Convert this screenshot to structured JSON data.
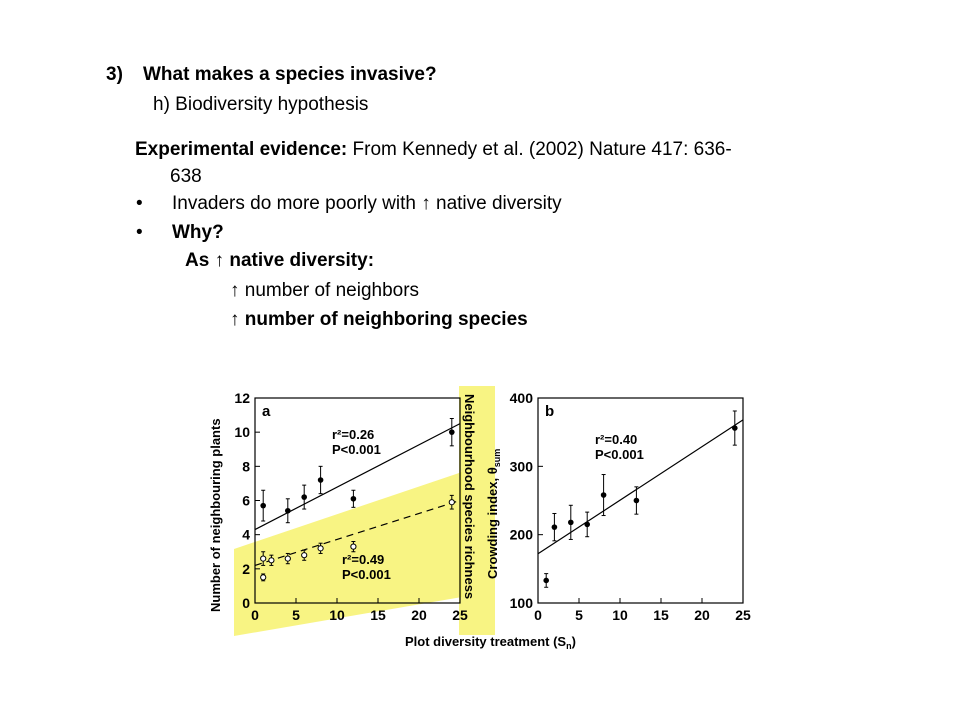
{
  "heading": {
    "number": "3)",
    "title": "What makes a species invasive?"
  },
  "subheading": "h) Biodiversity hypothesis",
  "evidence": {
    "label": "Experimental evidence:",
    "text": " From Kennedy et al. (2002) Nature 417: 636-",
    "cont": "638"
  },
  "bullets": [
    {
      "marker": "•",
      "text": "Invaders do more poorly with ↑ native diversity"
    },
    {
      "marker": "•",
      "text": "Why?"
    }
  ],
  "why": {
    "line1": "As ↑ native diversity:",
    "line2": "↑ number of neighbors",
    "line3": "↑ number of neighboring species"
  },
  "figure": {
    "shared_xlabel": "Plot diversity treatment (S",
    "shared_xlabel_sub": "n",
    "shared_xlabel_end": ")",
    "highlight_color": "#f6f05a",
    "panel_a": {
      "label": "a",
      "ylabel": "Number of neighbouring plants",
      "ylabel_right": "Neighbourhood species richness",
      "stats_top": {
        "r2": "r²=0.26",
        "p": "P<0.001"
      },
      "stats_bottom": {
        "r2": "r²=0.49",
        "p": "P<0.001"
      }
    },
    "panel_b": {
      "label": "b",
      "ylabel": "Crowding index, θ",
      "ylabel_sub": "sum",
      "stats": {
        "r2": "r²=0.40",
        "p": "P<0.001"
      }
    }
  },
  "chart_data": [
    {
      "type": "scatter",
      "panel": "a",
      "xlabel": "Plot diversity treatment (Sn)",
      "ylabel": "Number of neighbouring plants",
      "xlim": [
        0,
        25
      ],
      "ylim": [
        0,
        12
      ],
      "x_ticks": [
        0,
        5,
        10,
        15,
        20,
        25
      ],
      "y_ticks": [
        0,
        2,
        4,
        6,
        8,
        10,
        12
      ],
      "series": [
        {
          "points": [
            [
              1,
              5.7
            ],
            [
              4,
              5.4
            ],
            [
              6,
              6.2
            ],
            [
              8,
              7.2
            ],
            [
              12,
              6.1
            ],
            [
              24,
              10.0
            ]
          ],
          "errors": [
            0.9,
            0.7,
            0.7,
            0.8,
            0.5,
            0.8
          ],
          "fit": [
            [
              0,
              4.3
            ],
            [
              25,
              10.5
            ]
          ],
          "marker": "filled"
        },
        {
          "points": [
            [
              1,
              2.6
            ],
            [
              1,
              1.5
            ],
            [
              2,
              2.5
            ],
            [
              4,
              2.6
            ],
            [
              6,
              2.8
            ],
            [
              8,
              3.2
            ],
            [
              12,
              3.3
            ],
            [
              24,
              5.9
            ]
          ],
          "errors": [
            0.4,
            0.2,
            0.3,
            0.3,
            0.3,
            0.3,
            0.3,
            0.4
          ],
          "fit": [
            [
              0,
              2.2
            ],
            [
              25,
              6.0
            ]
          ],
          "marker": "open",
          "dashed": true
        }
      ],
      "annotations": [
        "r²=0.26 P<0.001",
        "r²=0.49 P<0.001"
      ]
    },
    {
      "type": "scatter",
      "panel": "b",
      "xlabel": "Plot diversity treatment (Sn)",
      "ylabel": "Crowding index, θsum",
      "xlim": [
        0,
        25
      ],
      "ylim": [
        100,
        400
      ],
      "x_ticks": [
        0,
        5,
        10,
        15,
        20,
        25
      ],
      "y_ticks": [
        100,
        200,
        300,
        400
      ],
      "series": [
        {
          "points": [
            [
              1,
              133
            ],
            [
              2,
              211
            ],
            [
              4,
              218
            ],
            [
              6,
              215
            ],
            [
              8,
              258
            ],
            [
              12,
              250
            ],
            [
              24,
              356
            ]
          ],
          "errors": [
            10,
            20,
            25,
            18,
            30,
            20,
            25
          ],
          "fit": [
            [
              0,
              172
            ],
            [
              25,
              368
            ]
          ],
          "marker": "filled"
        }
      ],
      "annotations": [
        "r²=0.40 P<0.001"
      ]
    }
  ]
}
